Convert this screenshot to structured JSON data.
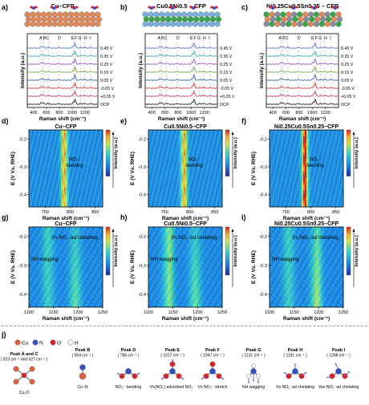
{
  "panel_labels": [
    "a)",
    "b)",
    "c)",
    "d)",
    "e)",
    "f)",
    "g)",
    "h)",
    "i)",
    "j)"
  ],
  "raman_panels": [
    {
      "title": "Cu–CFP",
      "slab": "cu",
      "peak_letters": [
        "A",
        "B",
        "C",
        "D",
        "E",
        "F",
        "G",
        "H",
        "I"
      ]
    },
    {
      "title": "Cu0.5Ni0.5 – CFP",
      "slab": "cuni",
      "peak_letters": [
        "A",
        "B",
        "C",
        "D",
        "E",
        "F",
        "G",
        "H",
        "I"
      ]
    },
    {
      "title": "Ni0.25Cu0.5Sn0.25 – CFP",
      "slab": "nicusn",
      "peak_letters": [
        "A",
        "B",
        "C",
        "D",
        "E",
        "F",
        "G",
        "H",
        "I"
      ]
    }
  ],
  "raman_axes": {
    "xlabel": "Raman shift (cm⁻¹)",
    "ylabel": "Intensity (a.u.)",
    "xticks": [
      "400",
      "600",
      "800",
      "1000",
      "1200"
    ]
  },
  "potential_labels": [
    "0.45 V",
    "0.35 V",
    "0.25 V",
    "0.15 V",
    "0.05 V",
    "-0.05 V",
    "+0.05 V",
    "OCP"
  ],
  "trace_colors": [
    "#4a6fd1",
    "#2aa8a0",
    "#8a4fbf",
    "#6fa83a",
    "#2f5fb0",
    "#d83030",
    "#c03060",
    "#111111"
  ],
  "maps": [
    {
      "label": "d)",
      "title": "Cu–CFP",
      "annotation": [
        "NO₂⁻",
        "bending"
      ],
      "xticks": [
        "750",
        "800",
        "850"
      ],
      "yticks": [
        "-0.2",
        "-0.3",
        "-0.4"
      ],
      "xlabel": "Raman shift (cm⁻¹)",
      "ylabel": "E (V Vs. RHE)",
      "cbar": "Intensity (a.u.)"
    },
    {
      "label": "e)",
      "title": "Cu0.5Ni0.5–CFP",
      "annotation": [
        "NO₂⁻",
        "bending"
      ],
      "xticks": [
        "750",
        "800",
        "850"
      ],
      "yticks": [
        "-0.2",
        "-0.3",
        "-0.4"
      ],
      "xlabel": "Raman shift (cm⁻¹)",
      "ylabel": "E (V Vs. RHE)",
      "cbar": "Intensity (a.u.)"
    },
    {
      "label": "f)",
      "title": "Ni0.25Cu0.5Sn0.25–CFP",
      "annotation": [
        "NO₂⁻",
        "bending"
      ],
      "xticks": [
        "750",
        "800",
        "850"
      ],
      "yticks": [
        "-0.2",
        "-0.3",
        "-0.4"
      ],
      "xlabel": "Raman shift (cm⁻¹)",
      "ylabel": "E (V Vs. RHE)",
      "cbar": "Intensity (a.u.)"
    },
    {
      "label": "g)",
      "title": "Cu–CFP",
      "annotation": [
        "Vs NO₂⁻ad chelating",
        "NH wagging"
      ],
      "xticks": [
        "1100",
        "1150",
        "1200",
        "1250"
      ],
      "yticks": [
        "-0.2",
        "-0.3",
        "-0.4"
      ],
      "xlabel": "Raman shift (cm⁻¹)",
      "ylabel": "E (V Vs. RHE)",
      "cbar": "Intensity (a.u.)"
    },
    {
      "label": "h)",
      "title": "Cu0.5Ni0.5–CFP",
      "annotation": [
        "Vs NO₂⁻ad chelating",
        "NH wagging"
      ],
      "xticks": [
        "1100",
        "1150",
        "1200",
        "1250"
      ],
      "yticks": [
        "-0.2",
        "-0.3",
        "-0.4"
      ],
      "xlabel": "Raman shift (cm⁻¹)",
      "ylabel": "E (V Vs. RHE)",
      "cbar": "Intensity (a.u.)"
    },
    {
      "label": "i)",
      "title": "Ni0.25Cu0.5Sn0.25–CFP",
      "annotation": [
        "Vs NO₂⁻ad chelating",
        "NH wagging"
      ],
      "xticks": [
        "1100",
        "1150",
        "1200",
        "1250"
      ],
      "yticks": [
        "-0.2",
        "-0.3",
        "-0.4"
      ],
      "xlabel": "Raman shift (cm⁻¹)",
      "ylabel": "E (V Vs. RHE)",
      "cbar": "Intensity (a.u.)"
    }
  ],
  "legend": [
    {
      "symbol": "Cu",
      "color": "#e06040"
    },
    {
      "symbol": "N",
      "color": "#3050c8"
    },
    {
      "symbol": "O",
      "color": "#e02020"
    },
    {
      "symbol": "H",
      "color": "#ffffff"
    }
  ],
  "assignments": [
    {
      "peak": "Peak A and C",
      "wavenumber": "( 523 cm⁻¹ and 627 cm⁻¹ )",
      "mode": "Cu₂O"
    },
    {
      "peak": "Peak B",
      "wavenumber": "( 554 cm⁻¹ )",
      "mode": "Cu–N"
    },
    {
      "peak": "Peak D",
      "wavenumber": "( 788 cm⁻¹ )",
      "mode": "NO₂⁻ bending"
    },
    {
      "peak": "Peak E",
      "wavenumber": "( 1017 cm⁻¹ )",
      "mode": "Vs(NO₂) adsorbed NO₂⁻"
    },
    {
      "peak": "Peak F",
      "wavenumber": "( 1047 cm⁻¹ )",
      "mode": "Vs NO₃⁻ stretch"
    },
    {
      "peak": "Peak G",
      "wavenumber": "( 1131 cm⁻¹ )",
      "mode": "NH wagging"
    },
    {
      "peak": "Peak H",
      "wavenumber": "( 1191 cm⁻¹ )",
      "mode": "Vs NO₂⁻ad chelating"
    },
    {
      "peak": "Peak I",
      "wavenumber": "( 1288 cm⁻¹ )",
      "mode": "Vas NO₂⁻ad chelating"
    }
  ]
}
